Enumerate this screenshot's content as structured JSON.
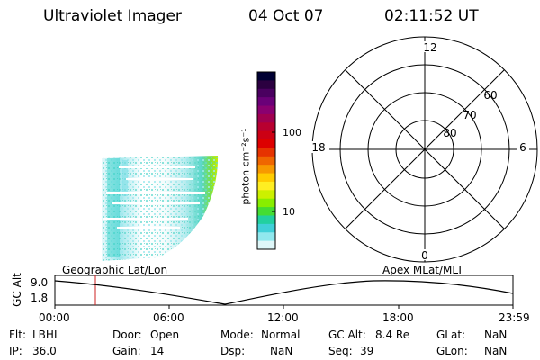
{
  "header": {
    "instrument": "Ultraviolet Imager",
    "date": "04 Oct 07",
    "time": "02:11:52 UT"
  },
  "left_panel_label": "Geographic Lat/Lon",
  "right_panel_label": "Apex MLat/MLT",
  "colorbar": {
    "unit_label": "photon cm⁻²s⁻¹",
    "ticks": [
      "100",
      "10"
    ],
    "colors": [
      "#000033",
      "#2b0040",
      "#4a0060",
      "#6a0078",
      "#8a0070",
      "#a00050",
      "#b80030",
      "#cc0014",
      "#dd0000",
      "#e63300",
      "#ef6600",
      "#f79900",
      "#ffcc00",
      "#ffee22",
      "#ccf000",
      "#88ee00",
      "#44dd33",
      "#22d0a0",
      "#40d0d8",
      "#90e8ee",
      "#dff7f9"
    ]
  },
  "polar_plot": {
    "mlt_labels": [
      "12",
      "18",
      "6",
      "0"
    ],
    "lat_labels": [
      "60",
      "70",
      "80"
    ]
  },
  "altitude_plot": {
    "y_axis_title": "GC Alt",
    "y_ticks": [
      "9.0",
      "1.8"
    ],
    "x_ticks": [
      "00:00",
      "06:00",
      "12:00",
      "18:00",
      "23:59"
    ],
    "current_time_marker_color": "#cc2222"
  },
  "info": {
    "flt_label": "Flt:",
    "flt_value": "LBHL",
    "ip_label": "IP:",
    "ip_value": "36.0",
    "door_label": "Door:",
    "door_value": "Open",
    "gain_label": "Gain:",
    "gain_value": "14",
    "mode_label": "Mode:",
    "mode_value": "Normal",
    "dsp_label": "Dsp:",
    "dsp_value": "NaN",
    "gcalt_label": "GC Alt:",
    "gcalt_value": "8.4 Re",
    "seq_label": "Seq:",
    "seq_value": "39",
    "glat_label": "GLat:",
    "glat_value": "NaN",
    "glon_label": "GLon:",
    "glon_value": "NaN"
  }
}
